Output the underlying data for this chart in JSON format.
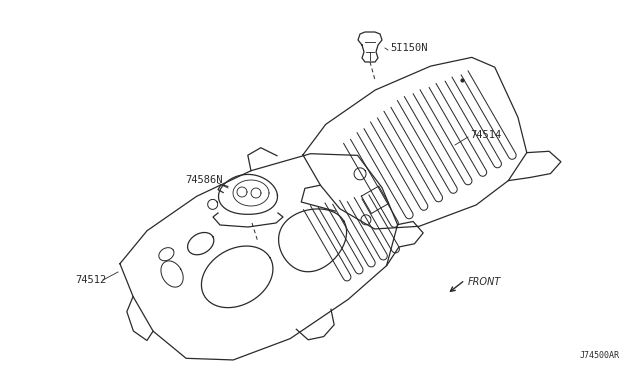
{
  "bg_color": "#ffffff",
  "line_color": "#2a2a2a",
  "label_color": "#2a2a2a",
  "diagram_code": "J74500AR",
  "front_label": "FRONT",
  "label_74514": "74514",
  "label_74586N": "74586N",
  "label_74512": "74512",
  "label_5I150N": "5I150N"
}
